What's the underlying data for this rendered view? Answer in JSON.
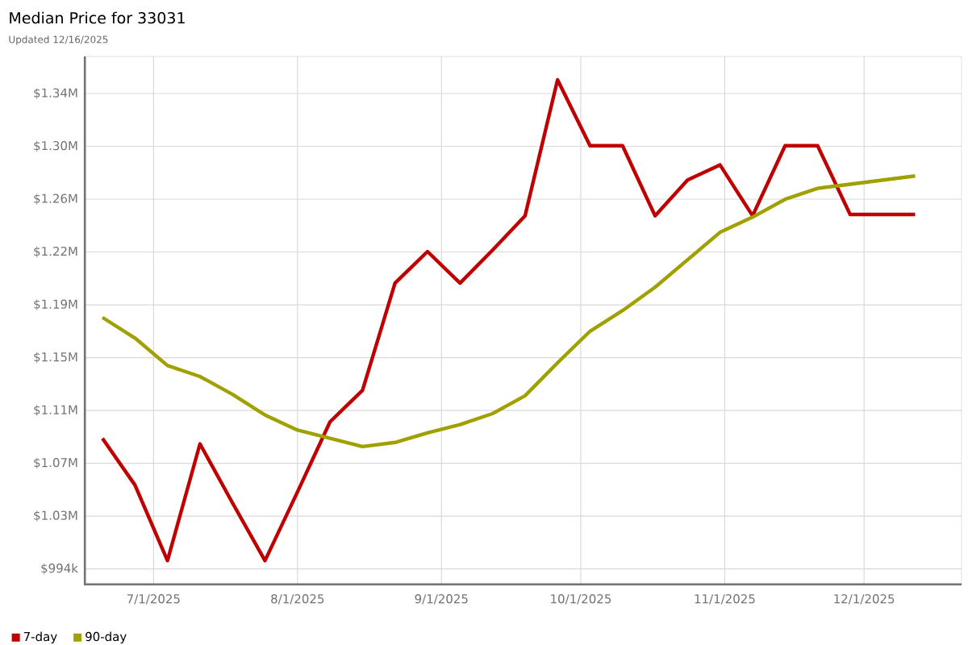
{
  "chart_data": {
    "type": "line",
    "title": "Median Price for 33031",
    "subtitle": "Updated 12/16/2025",
    "x": [
      "2025-06-20",
      "2025-06-27",
      "2025-07-04",
      "2025-07-11",
      "2025-07-18",
      "2025-07-25",
      "2025-08-01",
      "2025-08-08",
      "2025-08-15",
      "2025-08-22",
      "2025-08-29",
      "2025-09-05",
      "2025-09-12",
      "2025-09-19",
      "2025-09-26",
      "2025-10-03",
      "2025-10-10",
      "2025-10-17",
      "2025-10-24",
      "2025-10-31",
      "2025-11-07",
      "2025-11-14",
      "2025-11-21",
      "2025-11-28",
      "2025-12-05",
      "2025-12-12"
    ],
    "series": [
      {
        "name": "7-day",
        "color": "#c00000",
        "values": [
          1089000,
          1055000,
          1000000,
          1085000,
          1042000,
          1000000,
          1050000,
          1101000,
          1124000,
          1202000,
          1225000,
          1202000,
          1226000,
          1251000,
          1350000,
          1302000,
          1302000,
          1251000,
          1277000,
          1288000,
          1251000,
          1302000,
          1302000,
          1252000,
          1252000,
          1252000
        ]
      },
      {
        "name": "90-day",
        "color": "#a0a000",
        "values": [
          1177000,
          1162000,
          1142000,
          1134000,
          1121000,
          1106000,
          1095000,
          1089000,
          1083000,
          1086000,
          1093000,
          1099000,
          1107000,
          1120000,
          1144000,
          1167000,
          1182000,
          1199000,
          1219000,
          1239000,
          1250000,
          1263000,
          1271000,
          1274000,
          1277000,
          1280000
        ]
      }
    ],
    "xlim": [
      "2025-06-16",
      "2025-12-22"
    ],
    "xticks": [
      {
        "value": "2025-07-01",
        "label": "7/1/2025"
      },
      {
        "value": "2025-08-01",
        "label": "8/1/2025"
      },
      {
        "value": "2025-09-01",
        "label": "9/1/2025"
      },
      {
        "value": "2025-10-01",
        "label": "10/1/2025"
      },
      {
        "value": "2025-11-01",
        "label": "11/1/2025"
      },
      {
        "value": "2025-12-01",
        "label": "12/1/2025"
      }
    ],
    "ylim": [
      982000,
      1367000
    ],
    "yticks": [
      {
        "value": 994000,
        "label": "$994k"
      },
      {
        "value": 1032444,
        "label": "$1.03M"
      },
      {
        "value": 1070889,
        "label": "$1.07M"
      },
      {
        "value": 1109333,
        "label": "$1.11M"
      },
      {
        "value": 1147778,
        "label": "$1.15M"
      },
      {
        "value": 1186222,
        "label": "$1.19M"
      },
      {
        "value": 1224667,
        "label": "$1.22M"
      },
      {
        "value": 1263111,
        "label": "$1.26M"
      },
      {
        "value": 1301556,
        "label": "$1.30M"
      },
      {
        "value": 1340000,
        "label": "$1.34M"
      }
    ],
    "grid": true,
    "legend": "bottom left"
  }
}
